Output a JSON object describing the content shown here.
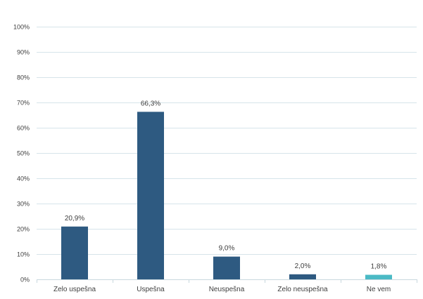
{
  "chart_data": {
    "type": "bar",
    "title": "",
    "xlabel": "",
    "ylabel": "",
    "categories": [
      "Zelo uspešna",
      "Uspešna",
      "Neuspešna",
      "Zelo neuspešna",
      "Ne vem"
    ],
    "values": [
      20.9,
      66.3,
      9.0,
      2.0,
      1.8
    ],
    "value_labels": [
      "20,9%",
      "66,3%",
      "9,0%",
      "2,0%",
      "1,8%"
    ],
    "ylim": [
      0,
      100
    ],
    "y_ticks": [
      0,
      10,
      20,
      30,
      40,
      50,
      60,
      70,
      80,
      90,
      100
    ],
    "y_tick_labels": [
      "0%",
      "10%",
      "20%",
      "30%",
      "40%",
      "50%",
      "60%",
      "70%",
      "80%",
      "90%",
      "100%"
    ],
    "grid": true,
    "legend": "none",
    "colors": [
      "#2e5a81",
      "#2e5a81",
      "#2e5a81",
      "#2e5a81",
      "#4bbac5"
    ]
  }
}
